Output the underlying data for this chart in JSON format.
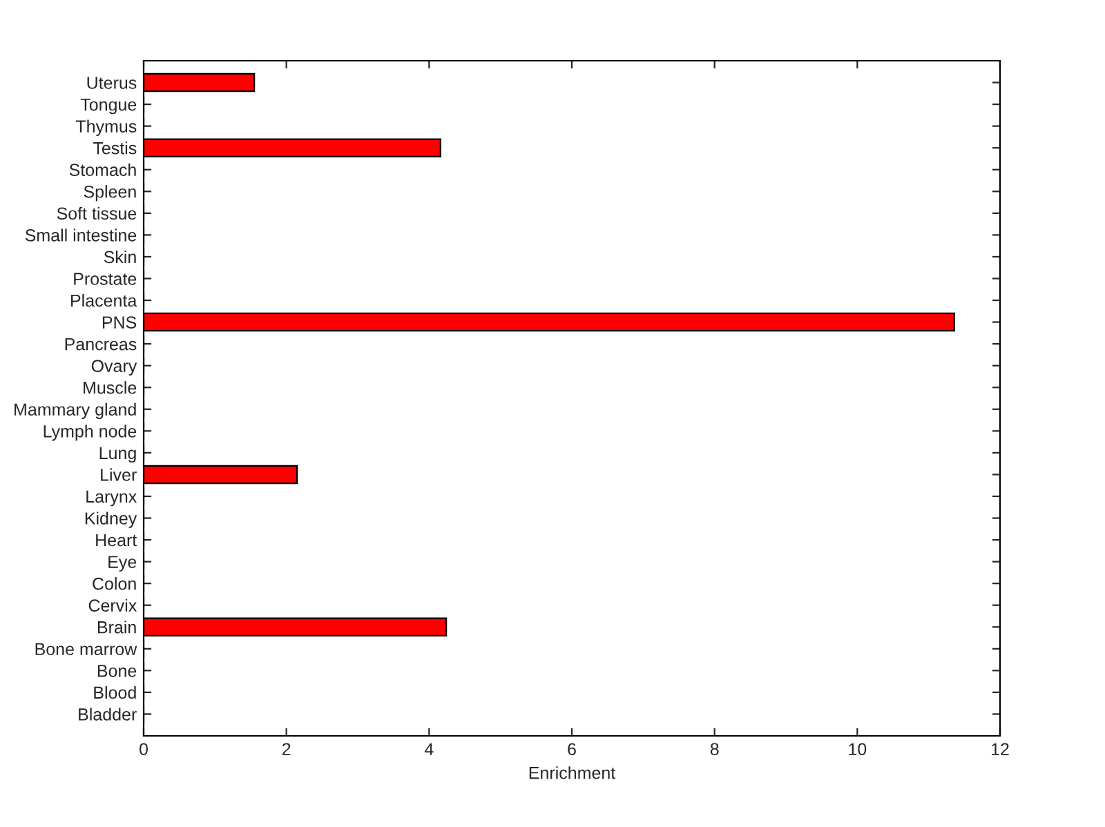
{
  "chart_data": {
    "type": "bar",
    "orientation": "horizontal",
    "xlabel": "Enrichment",
    "categories": [
      "Uterus",
      "Tongue",
      "Thymus",
      "Testis",
      "Stomach",
      "Spleen",
      "Soft tissue",
      "Small intestine",
      "Skin",
      "Prostate",
      "Placenta",
      "PNS",
      "Pancreas",
      "Ovary",
      "Muscle",
      "Mammary gland",
      "Lymph node",
      "Lung",
      "Liver",
      "Larynx",
      "Kidney",
      "Heart",
      "Eye",
      "Colon",
      "Cervix",
      "Brain",
      "Bone marrow",
      "Bone",
      "Blood",
      "Bladder"
    ],
    "values": [
      1.55,
      0,
      0,
      4.16,
      0,
      0,
      0,
      0,
      0,
      0,
      0,
      11.36,
      0,
      0,
      0,
      0,
      0,
      0,
      2.15,
      0,
      0,
      0,
      0,
      0,
      0,
      4.24,
      0,
      0,
      0,
      0
    ],
    "color": "#ff0000",
    "xlim": [
      0,
      12
    ],
    "xticks": [
      0,
      2,
      4,
      6,
      8,
      10,
      12
    ],
    "grid": false
  }
}
